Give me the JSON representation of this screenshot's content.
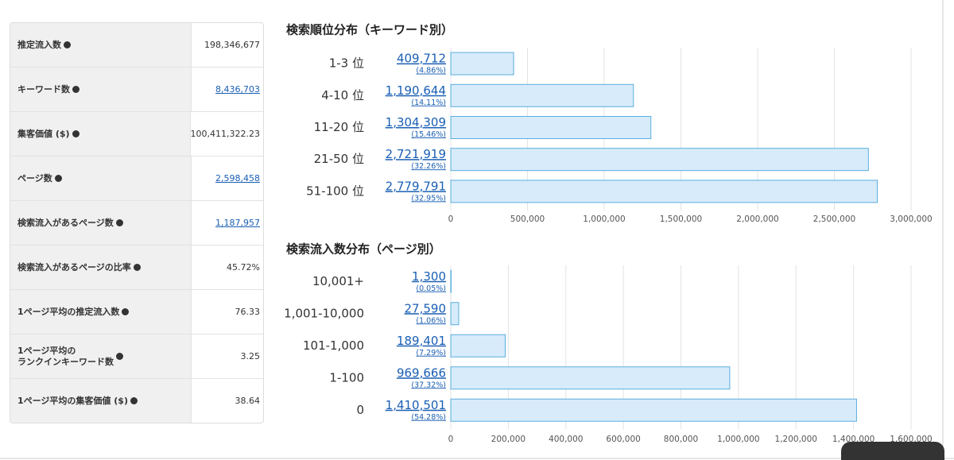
{
  "table": {
    "rows": [
      {
        "label": "推定流入数",
        "value": "198,346,677",
        "link": false
      },
      {
        "label": "キーワード数",
        "value": "8,436,703",
        "link": true
      },
      {
        "label": "集客価値 ($)",
        "value": "100,411,322.23",
        "link": false
      },
      {
        "label": "ページ数",
        "value": "2,598,458",
        "link": true
      },
      {
        "label": "検索流入があるページ数",
        "value": "1,187,957",
        "link": true
      },
      {
        "label": "検索流入があるページの比率",
        "value": "45.72%",
        "link": false
      },
      {
        "label": "1ページ平均の推定流入数",
        "value": "76.33",
        "link": false
      },
      {
        "label": "1ページ平均の\nランクインキーワード数",
        "value": "3.25",
        "link": false
      },
      {
        "label": "1ページ平均の集客価値 ($)",
        "value": "38.64",
        "link": false
      }
    ]
  },
  "chart_data": [
    {
      "type": "bar",
      "orientation": "horizontal",
      "title": "検索順位分布（キーワード別）",
      "categories": [
        "1-3 位",
        "4-10 位",
        "11-20 位",
        "21-50 位",
        "51-100 位"
      ],
      "values": [
        409712,
        1190644,
        1304309,
        2721919,
        2779791
      ],
      "value_labels": [
        "409,712",
        "1,190,644",
        "1,304,309",
        "2,721,919",
        "2,779,791"
      ],
      "share_labels": [
        "(4.86%)",
        "(14.11%)",
        "(15.46%)",
        "(32.26%)",
        "(32.95%)"
      ],
      "color": "#d7ebfa",
      "edge_color": "#5aaede",
      "grid": true,
      "xlim": [
        0,
        3000000
      ],
      "xticks": [
        0,
        {
          "value": 500000,
          "label": "500,000"
        },
        {
          "value": 1000000,
          "label": "1,000,000"
        },
        {
          "value": 1500000,
          "label": "1,500,000"
        },
        {
          "value": 2000000,
          "label": "2,000,000"
        },
        {
          "value": 2500000,
          "label": "2,500,000"
        },
        {
          "value": 3000000,
          "label": "3,000,000"
        }
      ]
    },
    {
      "type": "bar",
      "orientation": "horizontal",
      "title": "検索流入数分布（ページ別）",
      "categories": [
        "10,001+",
        "1,001-10,000",
        "101-1,000",
        "1-100",
        "0"
      ],
      "values": [
        1300,
        27590,
        189401,
        969666,
        1410501
      ],
      "value_labels": [
        "1,300",
        "27,590",
        "189,401",
        "969,666",
        "1,410,501"
      ],
      "share_labels": [
        "(0.05%)",
        "(1.06%)",
        "(7.29%)",
        "(37.32%)",
        "(54.28%)"
      ],
      "color": "#d7ebfa",
      "edge_color": "#5aaede",
      "grid": true,
      "xlim": [
        0,
        1600000
      ],
      "xticks": [
        0,
        {
          "value": 200000,
          "label": "200,000"
        },
        {
          "value": 400000,
          "label": "400,000"
        },
        {
          "value": 600000,
          "label": "600,000"
        },
        {
          "value": 800000,
          "label": "800,000"
        },
        {
          "value": 1000000,
          "label": "1,000,000"
        },
        {
          "value": 1200000,
          "label": "1,200,000"
        },
        {
          "value": 1400000,
          "label": "1,400,000"
        },
        {
          "value": 1600000,
          "label": "1,600,000"
        }
      ]
    }
  ]
}
